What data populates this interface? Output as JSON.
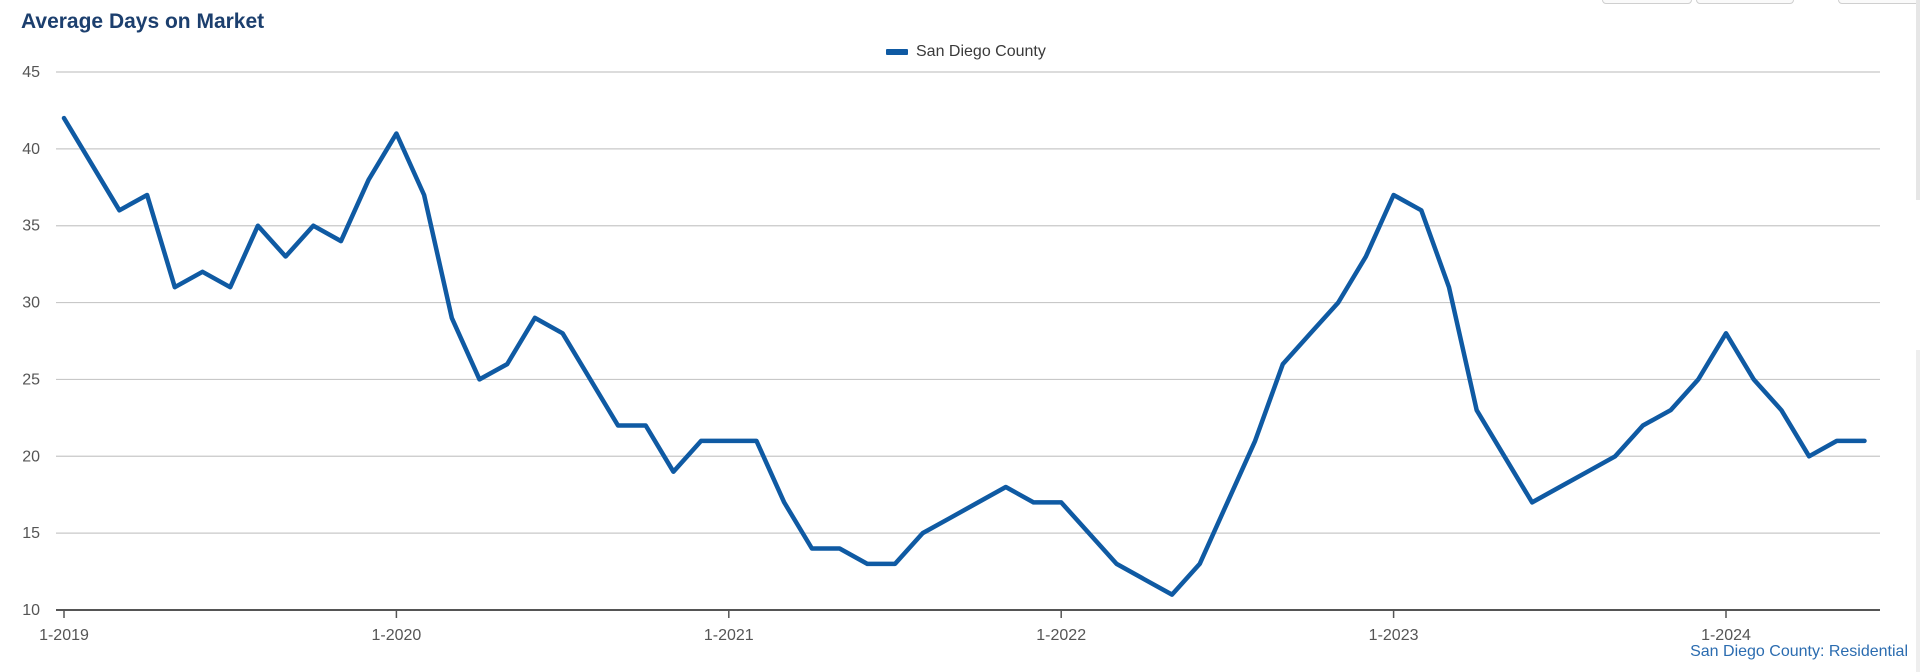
{
  "chart_data": {
    "type": "line",
    "title": "Average Days on Market",
    "xlabel": "",
    "ylabel": "",
    "ylim": [
      10,
      45
    ],
    "yticks": [
      10,
      15,
      20,
      25,
      30,
      35,
      40,
      45
    ],
    "x_tick_labels": [
      "1-2019",
      "1-2020",
      "1-2021",
      "1-2022",
      "1-2023",
      "1-2024"
    ],
    "grid": true,
    "legend_position": "top-center",
    "x": [
      "2019-01",
      "2019-02",
      "2019-03",
      "2019-04",
      "2019-05",
      "2019-06",
      "2019-07",
      "2019-08",
      "2019-09",
      "2019-10",
      "2019-11",
      "2019-12",
      "2020-01",
      "2020-02",
      "2020-03",
      "2020-04",
      "2020-05",
      "2020-06",
      "2020-07",
      "2020-08",
      "2020-09",
      "2020-10",
      "2020-11",
      "2020-12",
      "2021-01",
      "2021-02",
      "2021-03",
      "2021-04",
      "2021-05",
      "2021-06",
      "2021-07",
      "2021-08",
      "2021-09",
      "2021-10",
      "2021-11",
      "2021-12",
      "2022-01",
      "2022-02",
      "2022-03",
      "2022-04",
      "2022-05",
      "2022-06",
      "2022-07",
      "2022-08",
      "2022-09",
      "2022-10",
      "2022-11",
      "2022-12",
      "2023-01",
      "2023-02",
      "2023-03",
      "2023-04",
      "2023-05",
      "2023-06",
      "2023-07",
      "2023-08",
      "2023-09",
      "2023-10",
      "2023-11",
      "2023-12",
      "2024-01",
      "2024-02",
      "2024-03",
      "2024-04",
      "2024-05",
      "2024-06"
    ],
    "series": [
      {
        "name": "San Diego County",
        "color": "#0f5aa3",
        "values": [
          42,
          39,
          36,
          37,
          31,
          32,
          31,
          35,
          33,
          35,
          34,
          38,
          41,
          37,
          29,
          25,
          26,
          29,
          28,
          25,
          22,
          22,
          19,
          21,
          21,
          21,
          17,
          14,
          14,
          13,
          13,
          15,
          16,
          17,
          18,
          17,
          17,
          15,
          13,
          12,
          11,
          13,
          17,
          21,
          26,
          28,
          30,
          33,
          37,
          36,
          31,
          23,
          20,
          17,
          18,
          19,
          20,
          22,
          23,
          25,
          28,
          25,
          23,
          20,
          21,
          21
        ]
      }
    ],
    "source_note": "San Diego County: Residential"
  },
  "colors": {
    "title": "#1c3f6e",
    "grid": "#c8c8c8",
    "axis": "#555555",
    "tick_label": "#555555",
    "source_note": "#2b6cb0"
  }
}
